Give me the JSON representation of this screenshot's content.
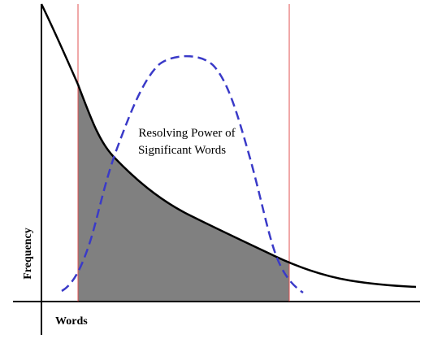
{
  "diagram": {
    "annotation_lines": [
      "Resolving Power of",
      "Significant Words"
    ],
    "y_axis_label": "Frequency",
    "x_axis_label": "Words",
    "colors": {
      "background": "#ffffff",
      "axes": "#000000",
      "frequency_curve": "#000000",
      "cutoff_lines": "#e05050",
      "shaded_region": "#808080",
      "resolving_power_curve": "#3a3ac8"
    }
  }
}
